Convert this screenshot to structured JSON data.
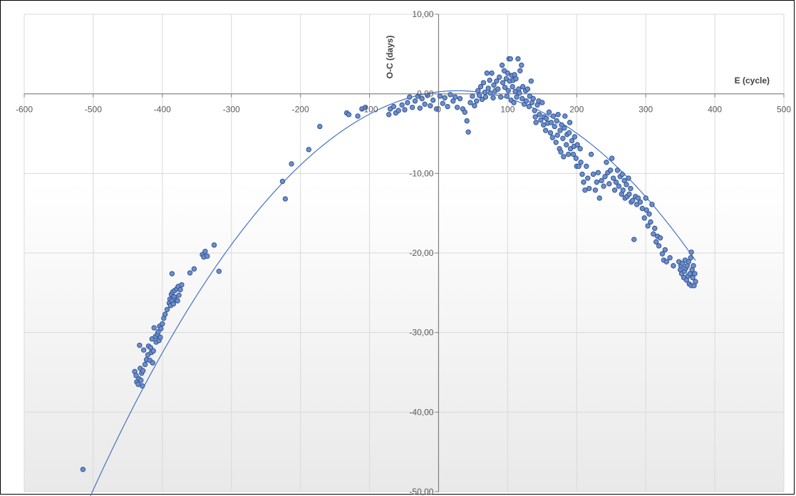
{
  "chart_data": {
    "type": "scatter",
    "title": "",
    "xlabel": "E (cycle)",
    "ylabel": "O-C (days)",
    "xlim": [
      -600,
      500
    ],
    "ylim": [
      -50,
      10
    ],
    "x_ticks": [
      -600,
      -500,
      -400,
      -300,
      -200,
      -100,
      0,
      100,
      200,
      300,
      400,
      500
    ],
    "x_tick_labels": [
      "-600",
      "-500",
      "-400",
      "-300",
      "-200",
      "-100",
      "0",
      "100",
      "200",
      "300",
      "400",
      "500"
    ],
    "y_ticks": [
      10,
      0,
      -10,
      -20,
      -30,
      -40,
      -50
    ],
    "y_tick_labels": [
      "10,00",
      "0,00",
      "-10,00",
      "-20,00",
      "-30,00",
      "-40,00",
      "-50,00"
    ],
    "grid": true,
    "legend": "none",
    "colors": {
      "marker_fill": "#6f8ec9",
      "marker_edge": "#2f5597",
      "trendline": "#4472c4",
      "grid": "#d9d9d9",
      "axis": "#808080"
    },
    "trendline": {
      "type": "polynomial-2",
      "x_range": [
        -512,
        372
      ],
      "coefficients": [
        0.25,
        0.01,
        -0.00018
      ]
    },
    "series": [
      {
        "points": [
          [
            -515,
            -47.2
          ],
          [
            -440,
            -34.9
          ],
          [
            -438,
            -35.4
          ],
          [
            -437,
            -36.2
          ],
          [
            -435,
            -36.5
          ],
          [
            -434,
            -35.8
          ],
          [
            -432,
            -34.5
          ],
          [
            -431,
            -36.0
          ],
          [
            -430,
            -35.1
          ],
          [
            -429,
            -36.7
          ],
          [
            -428,
            -34.8
          ],
          [
            -433,
            -31.6
          ],
          [
            -427,
            -32.2
          ],
          [
            -425,
            -34.0
          ],
          [
            -423,
            -33.4
          ],
          [
            -421,
            -32.8
          ],
          [
            -420,
            -31.7
          ],
          [
            -418,
            -33.5
          ],
          [
            -417,
            -31.9
          ],
          [
            -416,
            -32.5
          ],
          [
            -415,
            -30.8
          ],
          [
            -414,
            -33.8
          ],
          [
            -413,
            -32.3
          ],
          [
            -412,
            -29.4
          ],
          [
            -410,
            -30.5
          ],
          [
            -409,
            -31.2
          ],
          [
            -407,
            -30.2
          ],
          [
            -406,
            -29.9
          ],
          [
            -405,
            -31.0
          ],
          [
            -404,
            -29.2
          ],
          [
            -403,
            -30.6
          ],
          [
            -402,
            -29.5
          ],
          [
            -400,
            -28.9
          ],
          [
            -398,
            -28.2
          ],
          [
            -396,
            -27.7
          ],
          [
            -393,
            -27.1
          ],
          [
            -390,
            -26.3
          ],
          [
            -389,
            -25.8
          ],
          [
            -388,
            -26.6
          ],
          [
            -387,
            -25.2
          ],
          [
            -386,
            -26.0
          ],
          [
            -385,
            -24.9
          ],
          [
            -384,
            -26.4
          ],
          [
            -383,
            -25.5
          ],
          [
            -382,
            -24.7
          ],
          [
            -380,
            -25.9
          ],
          [
            -379,
            -24.5
          ],
          [
            -378,
            -26.0
          ],
          [
            -377,
            -24.2
          ],
          [
            -376,
            -25.3
          ],
          [
            -374,
            -24.6
          ],
          [
            -372,
            -24.0
          ],
          [
            -386,
            -22.6
          ],
          [
            -360,
            -22.5
          ],
          [
            -354,
            -22.0
          ],
          [
            -342,
            -20.2
          ],
          [
            -340,
            -20.5
          ],
          [
            -338,
            -19.8
          ],
          [
            -335,
            -20.4
          ],
          [
            -325,
            -19.0
          ],
          [
            -318,
            -22.3
          ],
          [
            -226,
            -11.0
          ],
          [
            -222,
            -13.2
          ],
          [
            -213,
            -8.8
          ],
          [
            -188,
            -7.0
          ],
          [
            -172,
            -4.1
          ],
          [
            -133,
            -2.4
          ],
          [
            -130,
            -2.6
          ],
          [
            -117,
            -2.8
          ],
          [
            -111,
            -1.9
          ],
          [
            -106,
            -1.7
          ],
          [
            -72,
            -2.6
          ],
          [
            -70,
            -1.9
          ],
          [
            -65,
            -1.6
          ],
          [
            -62,
            -2.4
          ],
          [
            -58,
            -2.1
          ],
          [
            -53,
            -1.4
          ],
          [
            -49,
            -2.0
          ],
          [
            -45,
            -1.1
          ],
          [
            -42,
            -0.4
          ],
          [
            -38,
            -1.7
          ],
          [
            -34,
            -0.9
          ],
          [
            -30,
            -0.3
          ],
          [
            -27,
            -1.8
          ],
          [
            -24,
            -0.6
          ],
          [
            -20,
            -1.3
          ],
          [
            -16,
            -0.2
          ],
          [
            -12,
            -1.5
          ],
          [
            -8,
            -0.8
          ],
          [
            -3,
            -1.9
          ],
          [
            2,
            -0.3
          ],
          [
            6,
            -1.2
          ],
          [
            9,
            -0.5
          ],
          [
            13,
            -1.6
          ],
          [
            17,
            -0.1
          ],
          [
            21,
            -0.9
          ],
          [
            24,
            -0.4
          ],
          [
            27,
            -1.7
          ],
          [
            31,
            -0.6
          ],
          [
            35,
            -1.9
          ],
          [
            38,
            -2.3
          ],
          [
            41,
            -3.4
          ],
          [
            43,
            -4.8
          ],
          [
            46,
            -1.1
          ],
          [
            49,
            -0.3
          ],
          [
            52,
            -1.5
          ],
          [
            55,
            -0.9
          ],
          [
            57,
            0.4
          ],
          [
            59,
            -0.2
          ],
          [
            61,
            0.9
          ],
          [
            63,
            -0.7
          ],
          [
            65,
            1.4
          ],
          [
            67,
            0.2
          ],
          [
            68,
            -0.4
          ],
          [
            70,
            2.6
          ],
          [
            72,
            0.7
          ],
          [
            74,
            1.7
          ],
          [
            75,
            0.1
          ],
          [
            77,
            2.6
          ],
          [
            79,
            -0.5
          ],
          [
            80,
            1.1
          ],
          [
            82,
            0.4
          ],
          [
            84,
            1.6
          ],
          [
            86,
            0.6
          ],
          [
            88,
            2.1
          ],
          [
            90,
            -0.4
          ],
          [
            92,
            3.6
          ],
          [
            93,
            1.4
          ],
          [
            95,
            2.9
          ],
          [
            96,
            0.8
          ],
          [
            98,
            1.9
          ],
          [
            99,
            -0.3
          ],
          [
            100,
            2.6
          ],
          [
            101,
            0.4
          ],
          [
            102,
            4.4
          ],
          [
            103,
            1.6
          ],
          [
            104,
            4.4
          ],
          [
            105,
            -0.8
          ],
          [
            106,
            2.3
          ],
          [
            107,
            0.9
          ],
          [
            108,
            1.7
          ],
          [
            109,
            -1.1
          ],
          [
            110,
            2.4
          ],
          [
            111,
            0.3
          ],
          [
            112,
            1.9
          ],
          [
            113,
            -0.4
          ],
          [
            115,
            4.4
          ],
          [
            116,
            0.6
          ],
          [
            117,
            0.1
          ],
          [
            118,
            2.9
          ],
          [
            120,
            3.6
          ],
          [
            121,
            -0.6
          ],
          [
            122,
            0.9
          ],
          [
            124,
            -1.3
          ],
          [
            126,
            0.4
          ],
          [
            127,
            -0.9
          ],
          [
            129,
            0.6
          ],
          [
            131,
            -1.6
          ],
          [
            132,
            -0.3
          ],
          [
            134,
            1.6
          ],
          [
            135,
            -1.1
          ],
          [
            137,
            -0.6
          ],
          [
            139,
            -2.1
          ],
          [
            140,
            -2.9
          ],
          [
            141,
            -3.6
          ],
          [
            143,
            -1.4
          ],
          [
            145,
            -0.9
          ],
          [
            146,
            -2.6
          ],
          [
            148,
            -3.3
          ],
          [
            150,
            -1.1
          ],
          [
            152,
            -3.9
          ],
          [
            153,
            -2.9
          ],
          [
            155,
            -4.6
          ],
          [
            156,
            -3.1
          ],
          [
            158,
            -3.7
          ],
          [
            160,
            -2.3
          ],
          [
            162,
            -4.9
          ],
          [
            163,
            -3.6
          ],
          [
            165,
            -5.5
          ],
          [
            166,
            -2.8
          ],
          [
            168,
            -4.1
          ],
          [
            170,
            -6.1
          ],
          [
            171,
            -3.4
          ],
          [
            172,
            -5.2
          ],
          [
            173,
            -2.6
          ],
          [
            175,
            -6.9
          ],
          [
            176,
            -4.6
          ],
          [
            177,
            -7.3
          ],
          [
            178,
            -3.9
          ],
          [
            180,
            -5.6
          ],
          [
            181,
            -7.9
          ],
          [
            182,
            -4.3
          ],
          [
            183,
            -2.8
          ],
          [
            185,
            -6.4
          ],
          [
            186,
            -5.1
          ],
          [
            188,
            -7.6
          ],
          [
            189,
            -4.9
          ],
          [
            190,
            -3.6
          ],
          [
            191,
            -6.9
          ],
          [
            193,
            -5.9
          ],
          [
            195,
            -7.6
          ],
          [
            196,
            -6.6
          ],
          [
            197,
            -5.4
          ],
          [
            199,
            -8.1
          ],
          [
            200,
            -9.1
          ],
          [
            201,
            -6.4
          ],
          [
            203,
            -9.1
          ],
          [
            205,
            -6.9
          ],
          [
            206,
            -8.6
          ],
          [
            208,
            -10.1
          ],
          [
            210,
            -11.1
          ],
          [
            212,
            -12.1
          ],
          [
            214,
            -9.1
          ],
          [
            216,
            -10.6
          ],
          [
            218,
            -11.9
          ],
          [
            221,
            -7.6
          ],
          [
            224,
            -10.1
          ],
          [
            227,
            -12.1
          ],
          [
            229,
            -11.1
          ],
          [
            231,
            -9.9
          ],
          [
            233,
            -13.1
          ],
          [
            236,
            -10.9
          ],
          [
            239,
            -11.6
          ],
          [
            241,
            -10.4
          ],
          [
            243,
            -8.6
          ],
          [
            245,
            -9.9
          ],
          [
            247,
            -11.3
          ],
          [
            249,
            -9.6
          ],
          [
            251,
            -8.1
          ],
          [
            253,
            -10.6
          ],
          [
            255,
            -12.1
          ],
          [
            257,
            -11.1
          ],
          [
            259,
            -9.6
          ],
          [
            261,
            -11.6
          ],
          [
            263,
            -10.4
          ],
          [
            265,
            -12.6
          ],
          [
            266,
            -10.1
          ],
          [
            267,
            -12.1
          ],
          [
            269,
            -10.9
          ],
          [
            270,
            -13.1
          ],
          [
            272,
            -11.4
          ],
          [
            273,
            -12.9
          ],
          [
            275,
            -10.6
          ],
          [
            276,
            -12.6
          ],
          [
            278,
            -11.9
          ],
          [
            279,
            -13.6
          ],
          [
            281,
            -13.4
          ],
          [
            283,
            -18.3
          ],
          [
            285,
            -12.9
          ],
          [
            287,
            -13.9
          ],
          [
            289,
            -13.1
          ],
          [
            292,
            -13.6
          ],
          [
            295,
            -14.4
          ],
          [
            298,
            -15.6
          ],
          [
            300,
            -13.1
          ],
          [
            301,
            -14.6
          ],
          [
            303,
            -16.6
          ],
          [
            305,
            -15.1
          ],
          [
            307,
            -16.1
          ],
          [
            309,
            -13.9
          ],
          [
            311,
            -17.6
          ],
          [
            313,
            -16.9
          ],
          [
            315,
            -18.6
          ],
          [
            317,
            -17.9
          ],
          [
            319,
            -19.1
          ],
          [
            321,
            -18.1
          ],
          [
            324,
            -20.1
          ],
          [
            326,
            -20.9
          ],
          [
            328,
            -19.6
          ],
          [
            330,
            -21.1
          ],
          [
            335,
            -20.6
          ],
          [
            340,
            -21.6
          ],
          [
            348,
            -21.1
          ],
          [
            350,
            -22.1
          ],
          [
            351,
            -21.6
          ],
          [
            352,
            -22.6
          ],
          [
            353,
            -21.3
          ],
          [
            355,
            -23.1
          ],
          [
            356,
            -22.3
          ],
          [
            357,
            -20.9
          ],
          [
            358,
            -21.9
          ],
          [
            359,
            -23.4
          ],
          [
            360,
            -21.6
          ],
          [
            361,
            -22.9
          ],
          [
            362,
            -21.1
          ],
          [
            363,
            -23.9
          ],
          [
            364,
            -22.6
          ],
          [
            365,
            -20.6
          ],
          [
            366,
            -24.1
          ],
          [
            367,
            -22.1
          ],
          [
            368,
            -23.1
          ],
          [
            369,
            -21.6
          ],
          [
            370,
            -24.1
          ],
          [
            371,
            -22.6
          ],
          [
            372,
            -23.6
          ],
          [
            366,
            -19.9
          ]
        ]
      }
    ]
  }
}
